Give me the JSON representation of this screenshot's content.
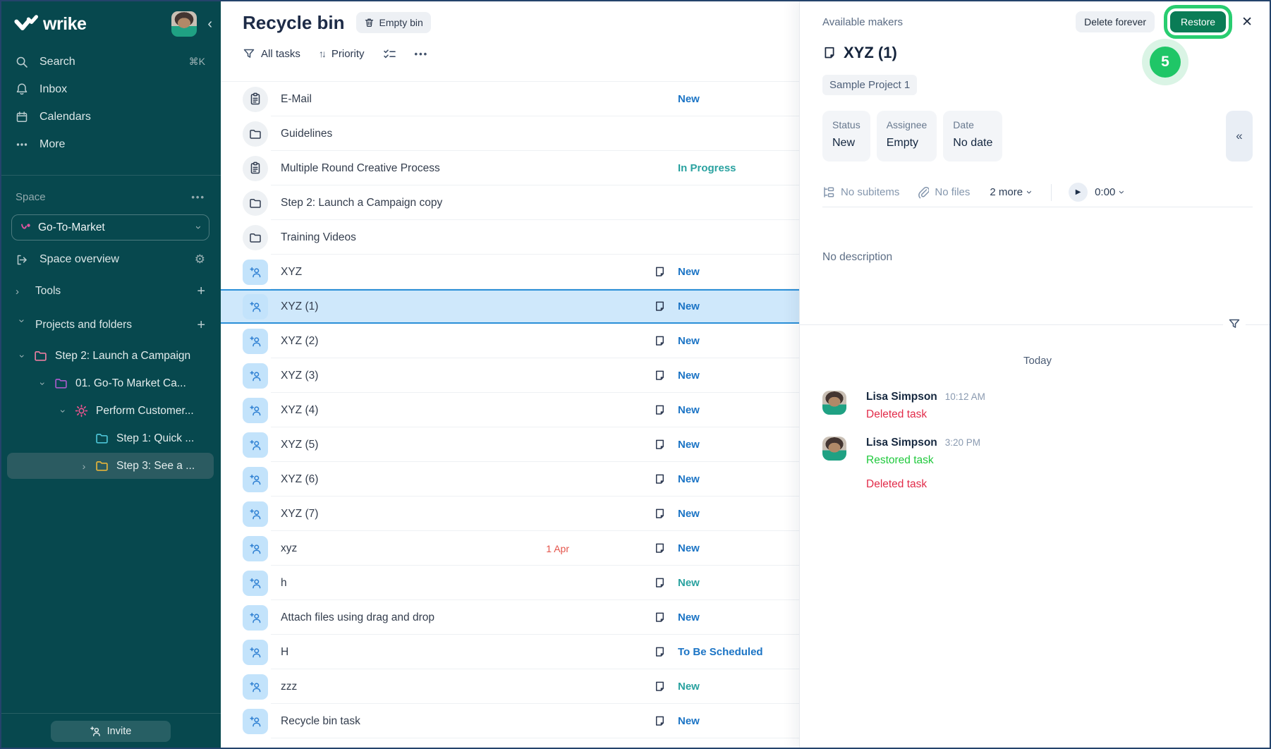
{
  "sidebar": {
    "logo_text": "wrike",
    "nav": [
      {
        "label": "Search",
        "icon": "search",
        "shortcut": "⌘K"
      },
      {
        "label": "Inbox",
        "icon": "bell",
        "shortcut": ""
      },
      {
        "label": "Calendars",
        "icon": "calendar",
        "shortcut": ""
      },
      {
        "label": "More",
        "icon": "dots",
        "shortcut": ""
      }
    ],
    "space_label": "Space",
    "space_name": "Go-To-Market",
    "overview_label": "Space overview",
    "tools_label": "Tools",
    "projects_label": "Projects and folders",
    "tree": [
      {
        "label": "Step 2: Launch a Campaign",
        "icon": "treefolder",
        "color": "#e87da0",
        "indent": 0,
        "chevron": "down"
      },
      {
        "label": "01. Go-To Market Ca...",
        "icon": "treefolder",
        "color": "#a75bc9",
        "indent": 1,
        "chevron": "down"
      },
      {
        "label": "Perform Customer...",
        "icon": "sun",
        "color": "#e8548e",
        "indent": 2,
        "chevron": "down"
      },
      {
        "label": "Step 1: Quick ...",
        "icon": "treefolder",
        "color": "#4cc3d5",
        "indent": 3,
        "chevron": "none"
      },
      {
        "label": "Step 3: See a ...",
        "icon": "treefolder",
        "color": "#e5b43a",
        "indent": 3,
        "chevron": "right",
        "selected": true
      }
    ],
    "invite_label": "Invite"
  },
  "list_panel": {
    "title": "Recycle bin",
    "empty_bin_label": "Empty bin",
    "filter_all_tasks": "All tasks",
    "sort_label": "Priority",
    "rows": [
      {
        "name": "E-Mail",
        "icon": "board",
        "status": "New",
        "status_color": "blue"
      },
      {
        "name": "Guidelines",
        "icon": "folder"
      },
      {
        "name": "Multiple Round Creative Process",
        "icon": "board",
        "status": "In Progress",
        "status_color": "teal"
      },
      {
        "name": "Step 2: Launch a Campaign copy",
        "icon": "folder"
      },
      {
        "name": "Training Videos",
        "icon": "folder"
      },
      {
        "name": "XYZ",
        "icon": "task",
        "note": true,
        "status": "New",
        "status_color": "blue"
      },
      {
        "name": "XYZ (1)",
        "icon": "task",
        "note": true,
        "status": "New",
        "status_color": "blue",
        "selected": true
      },
      {
        "name": "XYZ (2)",
        "icon": "task",
        "note": true,
        "status": "New",
        "status_color": "blue"
      },
      {
        "name": "XYZ (3)",
        "icon": "task",
        "note": true,
        "status": "New",
        "status_color": "blue"
      },
      {
        "name": "XYZ (4)",
        "icon": "task",
        "note": true,
        "status": "New",
        "status_color": "blue"
      },
      {
        "name": "XYZ (5)",
        "icon": "task",
        "note": true,
        "status": "New",
        "status_color": "blue"
      },
      {
        "name": "XYZ (6)",
        "icon": "task",
        "note": true,
        "status": "New",
        "status_color": "blue"
      },
      {
        "name": "XYZ (7)",
        "icon": "task",
        "note": true,
        "status": "New",
        "status_color": "blue"
      },
      {
        "name": "xyz",
        "icon": "task",
        "date": "1 Apr",
        "note": true,
        "status": "New",
        "status_color": "blue"
      },
      {
        "name": "h",
        "icon": "task",
        "note": true,
        "status": "New",
        "status_color": "teal"
      },
      {
        "name": "Attach files using drag and drop",
        "icon": "task",
        "note": true,
        "status": "New",
        "status_color": "blue"
      },
      {
        "name": "H",
        "icon": "task",
        "note": true,
        "status": "To Be Scheduled",
        "status_color": "blue"
      },
      {
        "name": "zzz",
        "icon": "task",
        "note": true,
        "status": "New",
        "status_color": "teal"
      },
      {
        "name": "Recycle bin task",
        "icon": "task",
        "note": true,
        "status": "New",
        "status_color": "blue"
      }
    ]
  },
  "detail_panel": {
    "breadcrumb": "Available makers",
    "delete_forever_label": "Delete forever",
    "restore_label": "Restore",
    "step_badge": "5",
    "title": "XYZ (1)",
    "project_chip": "Sample Project 1",
    "fields": [
      {
        "label": "Status",
        "value": "New",
        "variant": "status"
      },
      {
        "label": "Assignee",
        "value": "Empty",
        "variant": "assignee"
      },
      {
        "label": "Date",
        "value": "No date",
        "variant": "date"
      }
    ],
    "toolbar": {
      "subitems": "No subitems",
      "files": "No files",
      "more": "2 more",
      "timer": "0:00"
    },
    "description_placeholder": "No description",
    "activity": {
      "day_label": "Today",
      "entries": [
        {
          "author": "Lisa Simpson",
          "time": "10:12 AM",
          "action1": "Deleted task",
          "action1_color": "red"
        },
        {
          "author": "Lisa Simpson",
          "time": "3:20 PM",
          "action1": "Restored task",
          "action1_color": "green",
          "action2": "Deleted task",
          "action2_color": "red"
        }
      ]
    }
  },
  "colors": {
    "sidebar_bg": "#07484e",
    "status_blue": "#1b74c5",
    "status_teal": "#2aa2a0",
    "overdue_red": "#e4544b",
    "deleted_red": "#e22b49",
    "restored_green": "#1fc93c",
    "restore_button": "#0a7c56",
    "tutorial_green": "#28cd70",
    "selected_row_bg": "#cfe8fb",
    "status_card_bg": "#b9e7fb"
  }
}
